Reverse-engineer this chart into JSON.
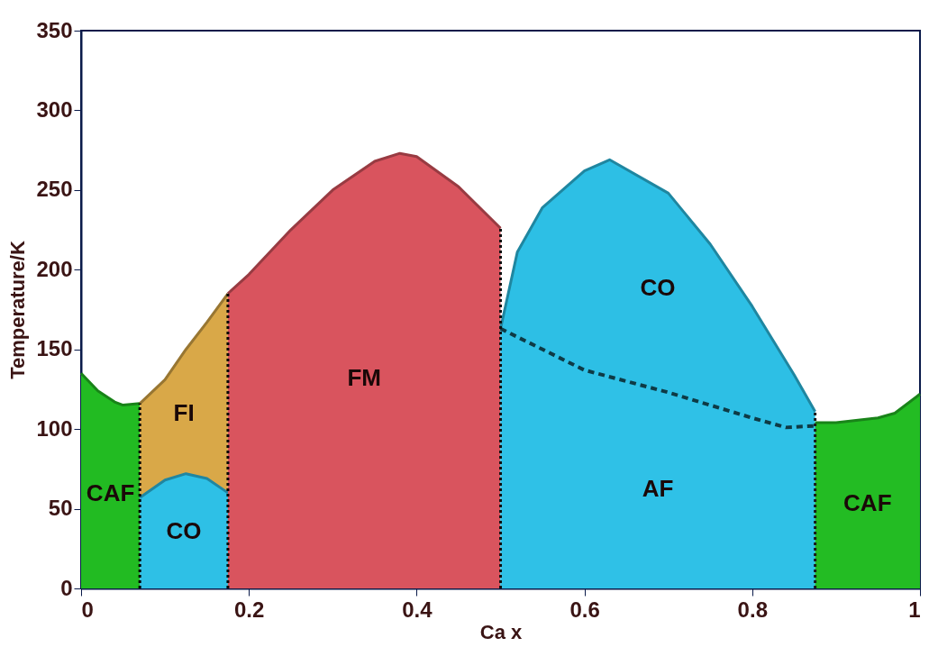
{
  "chart_data": {
    "type": "area",
    "xlabel": "Ca x",
    "ylabel": "Temperature/K",
    "xlim": [
      0,
      1
    ],
    "ylim": [
      0,
      350
    ],
    "xticks": [
      0,
      0.2,
      0.4,
      0.6,
      0.8,
      1
    ],
    "yticks": [
      0,
      50,
      100,
      150,
      200,
      250,
      300,
      350
    ],
    "grid": false,
    "series": [
      {
        "name": "CAF",
        "color": "#22bb22",
        "x": [
          0,
          0.02,
          0.04,
          0.05,
          0.07
        ],
        "values": [
          135,
          124,
          117,
          115,
          116
        ]
      },
      {
        "name": "FI",
        "color": "#d9a848",
        "x": [
          0.07,
          0.1,
          0.125,
          0.15,
          0.175
        ],
        "values": [
          116,
          131,
          150,
          167,
          185
        ]
      },
      {
        "name": "CO",
        "color": "#2ec0e6",
        "x": [
          0.07,
          0.1,
          0.125,
          0.15,
          0.175
        ],
        "values": [
          57,
          68,
          72,
          69,
          60
        ]
      },
      {
        "name": "FM",
        "color": "#d9545e",
        "x": [
          0.175,
          0.2,
          0.25,
          0.3,
          0.35,
          0.38,
          0.4,
          0.45,
          0.5
        ],
        "values": [
          185,
          197,
          225,
          250,
          268,
          273,
          271,
          252,
          226
        ]
      },
      {
        "name": "CO",
        "color": "#2dbfe5",
        "x": [
          0.5,
          0.52,
          0.55,
          0.6,
          0.63,
          0.7,
          0.75,
          0.8,
          0.85,
          0.875
        ],
        "values": [
          163,
          211,
          239,
          262,
          269,
          248,
          216,
          177,
          134,
          111
        ]
      },
      {
        "name": "AF",
        "color": "#2fc1e7",
        "line_style": "dashed",
        "x": [
          0.5,
          0.6,
          0.7,
          0.8,
          0.84,
          0.875
        ],
        "values": [
          163,
          137,
          123,
          107,
          101,
          102
        ]
      },
      {
        "name": "CAF",
        "color": "#23bc23",
        "x": [
          0.875,
          0.9,
          0.95,
          0.97,
          1
        ],
        "values": [
          104,
          104,
          107,
          110,
          122
        ]
      },
      {
        "type": "line",
        "color": "#000000",
        "line_style": "dotted",
        "x": [
          0.07,
          0.07
        ],
        "values": [
          0,
          116
        ]
      },
      {
        "type": "line",
        "color": "#080808",
        "line_style": "dotted",
        "x": [
          0.175,
          0.175
        ],
        "values": [
          0,
          185
        ]
      },
      {
        "type": "line",
        "color": "#101010",
        "line_style": "dotted",
        "x": [
          0.5,
          0.5
        ],
        "values": [
          0,
          226
        ]
      },
      {
        "type": "line",
        "color": "#181818",
        "line_style": "dotted",
        "x": [
          0.875,
          0.875
        ],
        "values": [
          0,
          111
        ]
      }
    ]
  }
}
